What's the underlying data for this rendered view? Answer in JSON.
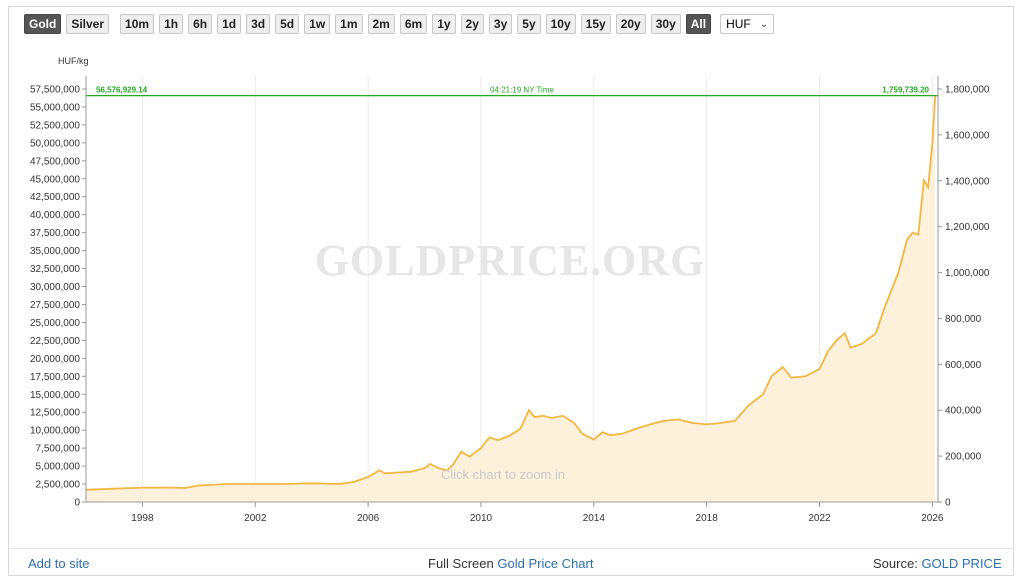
{
  "toolbar": {
    "metals": [
      {
        "label": "Gold",
        "active": true
      },
      {
        "label": "Silver",
        "active": false
      }
    ],
    "ranges": [
      {
        "label": "10m",
        "active": false
      },
      {
        "label": "1h",
        "active": false
      },
      {
        "label": "6h",
        "active": false
      },
      {
        "label": "1d",
        "active": false
      },
      {
        "label": "3d",
        "active": false
      },
      {
        "label": "5d",
        "active": false
      },
      {
        "label": "1w",
        "active": false
      },
      {
        "label": "1m",
        "active": false
      },
      {
        "label": "2m",
        "active": false
      },
      {
        "label": "6m",
        "active": false
      },
      {
        "label": "1y",
        "active": false
      },
      {
        "label": "2y",
        "active": false
      },
      {
        "label": "3y",
        "active": false
      },
      {
        "label": "5y",
        "active": false
      },
      {
        "label": "10y",
        "active": false
      },
      {
        "label": "15y",
        "active": false
      },
      {
        "label": "20y",
        "active": false
      },
      {
        "label": "30y",
        "active": false
      },
      {
        "label": "All",
        "active": true
      }
    ],
    "currency": "HUF"
  },
  "footer": {
    "add_to_site": "Add to site",
    "full_screen_prefix": "Full Screen",
    "full_screen_link": "Gold Price Chart",
    "source_prefix": "Source:",
    "source_link": "GOLD PRICE"
  },
  "colors": {
    "line": "#f2b740",
    "fill": "#fdf1dc",
    "current_line": "#22aa22",
    "link": "#2a6fb0"
  },
  "chart_data": {
    "type": "area",
    "unit_left": "HUF/kg",
    "watermark": "GOLDPRICE.ORG",
    "hint": "Click chart to zoom in",
    "current_left_label": "56,576,929.14",
    "current_time_label": "04:21:19 NY Time",
    "current_right_label": "1,759,739.20",
    "current_value": 56576929.14,
    "xlim": [
      1996.0,
      2026.2
    ],
    "ylim_left": [
      0,
      57500000
    ],
    "ylim_right": [
      0,
      1800000
    ],
    "x_ticks": [
      {
        "value": 1998,
        "label": "1998"
      },
      {
        "value": 2002,
        "label": "2002"
      },
      {
        "value": 2006,
        "label": "2006"
      },
      {
        "value": 2010,
        "label": "2010"
      },
      {
        "value": 2014,
        "label": "2014"
      },
      {
        "value": 2018,
        "label": "2018"
      },
      {
        "value": 2022,
        "label": "2022"
      },
      {
        "value": 2026,
        "label": "2026"
      }
    ],
    "y_ticks_left": [
      {
        "value": 0,
        "label": "0"
      },
      {
        "value": 2500000,
        "label": "2,500,000"
      },
      {
        "value": 5000000,
        "label": "5,000,000"
      },
      {
        "value": 7500000,
        "label": "7,500,000"
      },
      {
        "value": 10000000,
        "label": "10,000,000"
      },
      {
        "value": 12500000,
        "label": "12,500,000"
      },
      {
        "value": 15000000,
        "label": "15,000,000"
      },
      {
        "value": 17500000,
        "label": "17,500,000"
      },
      {
        "value": 20000000,
        "label": "20,000,000"
      },
      {
        "value": 22500000,
        "label": "22,500,000"
      },
      {
        "value": 25000000,
        "label": "25,000,000"
      },
      {
        "value": 27500000,
        "label": "27,500,000"
      },
      {
        "value": 30000000,
        "label": "30,000,000"
      },
      {
        "value": 32500000,
        "label": "32,500,000"
      },
      {
        "value": 35000000,
        "label": "35,000,000"
      },
      {
        "value": 37500000,
        "label": "37,500,000"
      },
      {
        "value": 40000000,
        "label": "40,000,000"
      },
      {
        "value": 42500000,
        "label": "42,500,000"
      },
      {
        "value": 45000000,
        "label": "45,000,000"
      },
      {
        "value": 47500000,
        "label": "47,500,000"
      },
      {
        "value": 50000000,
        "label": "50,000,000"
      },
      {
        "value": 52500000,
        "label": "52,500,000"
      },
      {
        "value": 55000000,
        "label": "55,000,000"
      },
      {
        "value": 57500000,
        "label": "57,500,000"
      }
    ],
    "y_ticks_right": [
      {
        "value": 0,
        "label": "0"
      },
      {
        "value": 200000,
        "label": "200,000"
      },
      {
        "value": 400000,
        "label": "400,000"
      },
      {
        "value": 600000,
        "label": "600,000"
      },
      {
        "value": 800000,
        "label": "800,000"
      },
      {
        "value": 1000000,
        "label": "1,000,000"
      },
      {
        "value": 1200000,
        "label": "1,200,000"
      },
      {
        "value": 1400000,
        "label": "1,400,000"
      },
      {
        "value": 1600000,
        "label": "1,600,000"
      },
      {
        "value": 1800000,
        "label": "1,800,000"
      }
    ],
    "series": [
      {
        "points": [
          [
            1996.0,
            1700000
          ],
          [
            1997.0,
            1850000
          ],
          [
            1998.0,
            2000000
          ],
          [
            1999.0,
            2000000
          ],
          [
            1999.5,
            1950000
          ],
          [
            2000.0,
            2300000
          ],
          [
            2001.0,
            2500000
          ],
          [
            2002.0,
            2500000
          ],
          [
            2003.0,
            2500000
          ],
          [
            2004.0,
            2600000
          ],
          [
            2005.0,
            2500000
          ],
          [
            2005.5,
            2800000
          ],
          [
            2006.0,
            3500000
          ],
          [
            2006.4,
            4400000
          ],
          [
            2006.6,
            4000000
          ],
          [
            2007.0,
            4100000
          ],
          [
            2007.5,
            4200000
          ],
          [
            2008.0,
            4700000
          ],
          [
            2008.2,
            5300000
          ],
          [
            2008.5,
            4700000
          ],
          [
            2008.8,
            4400000
          ],
          [
            2009.0,
            5200000
          ],
          [
            2009.3,
            7000000
          ],
          [
            2009.6,
            6300000
          ],
          [
            2010.0,
            7500000
          ],
          [
            2010.3,
            9000000
          ],
          [
            2010.6,
            8600000
          ],
          [
            2011.0,
            9200000
          ],
          [
            2011.4,
            10200000
          ],
          [
            2011.7,
            12800000
          ],
          [
            2011.9,
            11800000
          ],
          [
            2012.2,
            12000000
          ],
          [
            2012.5,
            11700000
          ],
          [
            2012.9,
            12000000
          ],
          [
            2013.3,
            11000000
          ],
          [
            2013.6,
            9500000
          ],
          [
            2014.0,
            8700000
          ],
          [
            2014.3,
            9700000
          ],
          [
            2014.6,
            9300000
          ],
          [
            2015.0,
            9500000
          ],
          [
            2015.5,
            10200000
          ],
          [
            2016.0,
            10800000
          ],
          [
            2016.5,
            11300000
          ],
          [
            2017.0,
            11500000
          ],
          [
            2017.5,
            11000000
          ],
          [
            2018.0,
            10800000
          ],
          [
            2018.5,
            11000000
          ],
          [
            2019.0,
            11300000
          ],
          [
            2019.5,
            13500000
          ],
          [
            2020.0,
            15000000
          ],
          [
            2020.3,
            17500000
          ],
          [
            2020.7,
            18800000
          ],
          [
            2021.0,
            17300000
          ],
          [
            2021.5,
            17500000
          ],
          [
            2022.0,
            18500000
          ],
          [
            2022.3,
            21000000
          ],
          [
            2022.6,
            22500000
          ],
          [
            2022.9,
            23500000
          ],
          [
            2023.1,
            21500000
          ],
          [
            2023.5,
            22000000
          ],
          [
            2024.0,
            23500000
          ],
          [
            2024.3,
            27000000
          ],
          [
            2024.8,
            32000000
          ],
          [
            2025.1,
            36500000
          ],
          [
            2025.3,
            37500000
          ],
          [
            2025.5,
            37200000
          ],
          [
            2025.7,
            44800000
          ],
          [
            2025.85,
            43800000
          ],
          [
            2026.0,
            50000000
          ],
          [
            2026.1,
            56576929
          ]
        ]
      }
    ]
  }
}
